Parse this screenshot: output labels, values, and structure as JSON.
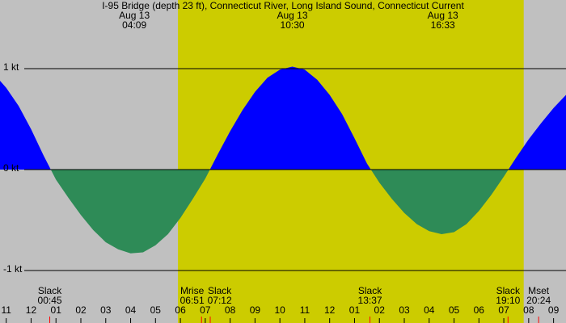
{
  "chart_data": {
    "type": "area",
    "title": "I-95 Bridge (depth 23 ft), Connecticut River, Long Island Sound, Connecticut Current",
    "x": [
      -1.25,
      -1,
      -0.5,
      0,
      0.5,
      1,
      1.5,
      2,
      2.5,
      3,
      3.5,
      4,
      4.5,
      5,
      5.5,
      6,
      6.5,
      7,
      7.5,
      8,
      8.5,
      9,
      9.5,
      10,
      10.5,
      11,
      11.5,
      12,
      12.5,
      13,
      13.5,
      14,
      14.5,
      15,
      15.5,
      16,
      16.5,
      17,
      17.5,
      18,
      18.5,
      19,
      19.5,
      20,
      20.5,
      21,
      21.5
    ],
    "values": [
      0.88,
      0.81,
      0.63,
      0.4,
      0.14,
      -0.1,
      -0.28,
      -0.45,
      -0.6,
      -0.72,
      -0.79,
      -0.83,
      -0.82,
      -0.75,
      -0.64,
      -0.48,
      -0.29,
      -0.09,
      0.15,
      0.38,
      0.59,
      0.77,
      0.91,
      0.99,
      1.02,
      0.99,
      0.89,
      0.74,
      0.55,
      0.31,
      0.06,
      -0.13,
      -0.29,
      -0.43,
      -0.54,
      -0.61,
      -0.64,
      -0.62,
      -0.54,
      -0.41,
      -0.25,
      -0.07,
      0.12,
      0.3,
      0.46,
      0.61,
      0.74
    ],
    "flood_color": "#0000ff",
    "ebb_color": "#2e8b57",
    "night_color": "#c0c0c0",
    "day_color": "#cccc00",
    "daylight": [
      5.9,
      19.8
    ],
    "xlim": [
      -1.25,
      21.5
    ],
    "ylim": [
      -1.08,
      1.68
    ],
    "xticks": [
      {
        "value": -1,
        "label": "11"
      },
      {
        "value": 0,
        "label": "12"
      },
      {
        "value": 1,
        "label": "01"
      },
      {
        "value": 2,
        "label": "02"
      },
      {
        "value": 3,
        "label": "03"
      },
      {
        "value": 4,
        "label": "04"
      },
      {
        "value": 5,
        "label": "05"
      },
      {
        "value": 6,
        "label": "06"
      },
      {
        "value": 7,
        "label": "07"
      },
      {
        "value": 8,
        "label": "08"
      },
      {
        "value": 9,
        "label": "09"
      },
      10,
      11,
      12,
      {
        "value": 13,
        "label": "01"
      },
      {
        "value": 14,
        "label": "02"
      },
      {
        "value": 15,
        "label": "03"
      },
      {
        "value": 16,
        "label": "04"
      },
      {
        "value": 17,
        "label": "05"
      },
      {
        "value": 18,
        "label": "06"
      },
      {
        "value": 19,
        "label": "07"
      },
      {
        "value": 20,
        "label": "08"
      },
      {
        "value": 21,
        "label": "09"
      }
    ],
    "yticks": [
      {
        "value": 1,
        "label": "1 kt"
      },
      {
        "value": 0,
        "label": "0 kt"
      },
      {
        "value": -1,
        "label": "-1 kt"
      }
    ],
    "extremes": [
      {
        "date": "Aug 13",
        "time": "04:09",
        "x": 4.15
      },
      {
        "date": "Aug 13",
        "time": "10:30",
        "x": 10.5
      },
      {
        "date": "Aug 13",
        "time": "16:33",
        "x": 16.55
      }
    ],
    "events": [
      {
        "label": "Slack",
        "time": "00:45",
        "x": 0.75
      },
      {
        "label": "Mrise",
        "time": "06:51",
        "x": 6.85
      },
      {
        "label": "Slack",
        "time": "07:12",
        "x": 7.2
      },
      {
        "label": "Slack",
        "time": "13:37",
        "x": 13.62
      },
      {
        "label": "Slack",
        "time": "19:10",
        "x": 19.17
      },
      {
        "label": "Mset",
        "time": "20:24",
        "x": 20.4
      }
    ]
  }
}
